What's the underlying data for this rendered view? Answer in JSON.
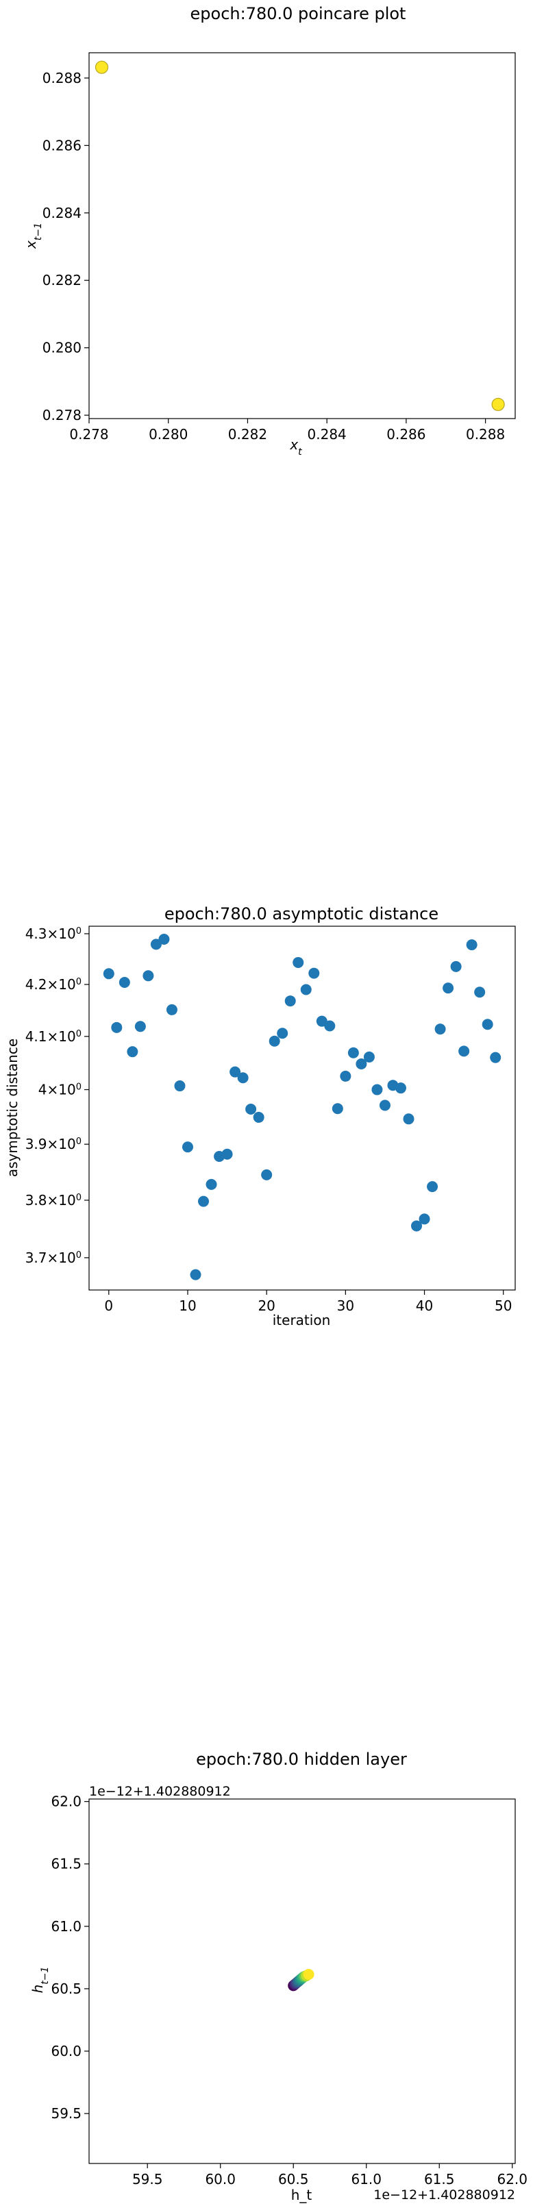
{
  "chart_data": [
    {
      "type": "scatter",
      "title": "epoch:780.0 poincare plot",
      "xlabel": "x_t",
      "ylabel": "x_{t-1}",
      "xlim": [
        0.278,
        0.28875
      ],
      "ylim": [
        0.2779,
        0.28875
      ],
      "x_ticks": [
        "0.278",
        "0.280",
        "0.282",
        "0.284",
        "0.286",
        "0.288"
      ],
      "x_tick_values": [
        0.278,
        0.28,
        0.282,
        0.284,
        0.286,
        0.288
      ],
      "y_ticks": [
        "0.278",
        "0.280",
        "0.282",
        "0.284",
        "0.286",
        "0.288"
      ],
      "y_tick_values": [
        0.278,
        0.28,
        0.282,
        0.284,
        0.286,
        0.288
      ],
      "color": "#fde725",
      "edge_color": "#b8a71a",
      "points": [
        {
          "x": 0.27832,
          "y": 0.28832
        },
        {
          "x": 0.28832,
          "y": 0.27832
        }
      ]
    },
    {
      "type": "scatter",
      "title": "epoch:780.0 asymptotic distance",
      "xlabel": "iteration",
      "ylabel": "asymptotic distance",
      "y_scale": "log",
      "xlim": [
        -2.5,
        51.5
      ],
      "ylim": [
        3.645,
        4.315
      ],
      "x_ticks": [
        "0",
        "10",
        "20",
        "30",
        "40",
        "50"
      ],
      "x_tick_values": [
        0,
        10,
        20,
        30,
        40,
        50
      ],
      "y_ticks": [
        "3.7",
        "3.8",
        "3.9",
        "4",
        "4.1",
        "4.2",
        "4.3"
      ],
      "y_tick_values": [
        3.7,
        3.8,
        3.9,
        4.0,
        4.1,
        4.2,
        4.3
      ],
      "y_tick_suffix": "×10",
      "y_tick_exp": "0",
      "color": "#1f77b4",
      "x": [
        0,
        1,
        2,
        3,
        4,
        5,
        6,
        7,
        8,
        9,
        10,
        11,
        12,
        13,
        14,
        15,
        16,
        17,
        18,
        19,
        20,
        21,
        22,
        23,
        24,
        25,
        26,
        27,
        28,
        29,
        30,
        31,
        32,
        33,
        34,
        35,
        36,
        37,
        38,
        39,
        40,
        41,
        42,
        43,
        44,
        45,
        46,
        47,
        48,
        49
      ],
      "y": [
        4.221,
        4.117,
        4.204,
        4.071,
        4.119,
        4.217,
        4.279,
        4.289,
        4.151,
        4.007,
        3.895,
        3.671,
        3.798,
        3.828,
        3.878,
        3.882,
        4.033,
        4.022,
        3.964,
        3.949,
        3.845,
        4.091,
        4.106,
        4.168,
        4.243,
        4.19,
        4.222,
        4.129,
        4.12,
        3.965,
        4.025,
        4.069,
        4.048,
        4.061,
        4.0,
        3.971,
        4.008,
        4.003,
        3.946,
        3.755,
        3.767,
        3.824,
        4.114,
        4.193,
        4.235,
        4.072,
        4.278,
        4.185,
        4.123,
        4.06
      ]
    },
    {
      "type": "scatter",
      "title": "epoch:780.0 hidden layer",
      "xlabel": "h_t",
      "ylabel": "h_{t-1}",
      "x_offset_text": "1e−12+1.402880912",
      "y_offset_text": "1e−12+1.402880912",
      "xlim": [
        59.1,
        62.02
      ],
      "ylim": [
        59.1,
        62.02
      ],
      "x_ticks": [
        "59.5",
        "60.0",
        "60.5",
        "61.0",
        "61.5",
        "62.0"
      ],
      "x_tick_values": [
        59.5,
        60.0,
        60.5,
        61.0,
        61.5,
        62.0
      ],
      "y_ticks": [
        "59.5",
        "60.0",
        "60.5",
        "61.0",
        "61.5",
        "62.0"
      ],
      "y_tick_values": [
        59.5,
        60.0,
        60.5,
        61.0,
        61.5,
        62.0
      ],
      "colormap": "viridis",
      "points_x": [
        60.5,
        60.51,
        60.52,
        60.53,
        60.54,
        60.55,
        60.56,
        60.57,
        60.58,
        60.59,
        60.605
      ],
      "points_y": [
        60.525,
        60.535,
        60.545,
        60.555,
        60.565,
        60.575,
        60.585,
        60.595,
        60.6,
        60.605,
        60.615
      ]
    }
  ]
}
